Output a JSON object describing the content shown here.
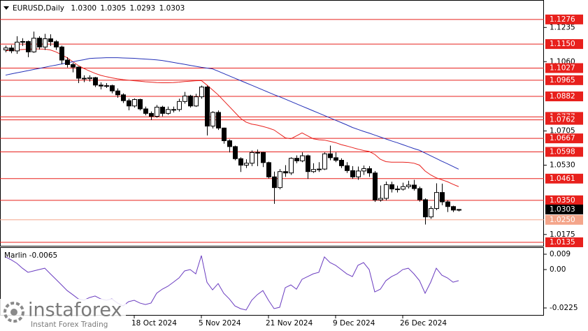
{
  "watermark": [
    "instaforex",
    "Instant Forex Trading"
  ],
  "chart_data": [
    {
      "type": "candlestick",
      "title": "EURUSD,Daily",
      "header_labels": [
        "1.0300",
        "1.0305",
        "1.0293",
        "1.0303"
      ],
      "categories": [
        null,
        null,
        null,
        null,
        null,
        null,
        null,
        null,
        null,
        null,
        null,
        null,
        null,
        null,
        null,
        null,
        null,
        null,
        null,
        null,
        null,
        null,
        null,
        "18 Oct 2024",
        null,
        null,
        null,
        null,
        null,
        null,
        null,
        null,
        null,
        null,
        null,
        "5 Nov 2024",
        null,
        null,
        null,
        null,
        null,
        null,
        null,
        null,
        null,
        null,
        null,
        "21 Nov 2024",
        null,
        null,
        null,
        null,
        null,
        null,
        null,
        null,
        null,
        null,
        null,
        "9 Dec 2024",
        null,
        null,
        null,
        null,
        null,
        null,
        null,
        null,
        null,
        null,
        null,
        "26 Dec 2024",
        null,
        null,
        null,
        null,
        null,
        null,
        null,
        null,
        null,
        null
      ],
      "ohlc": [
        [
          1.112,
          1.1142,
          1.1108,
          1.113
        ],
        [
          1.113,
          1.1145,
          1.1103,
          1.1115
        ],
        [
          1.1115,
          1.119,
          1.11,
          1.116
        ],
        [
          1.116,
          1.118,
          1.114,
          1.1163
        ],
        [
          1.1163,
          1.1168,
          1.1083,
          1.111
        ],
        [
          1.111,
          1.1214,
          1.1105,
          1.118
        ],
        [
          1.118,
          1.119,
          1.1122,
          1.1135
        ],
        [
          1.1135,
          1.1202,
          1.112,
          1.1177
        ],
        [
          1.1177,
          1.12,
          1.114,
          1.1162
        ],
        [
          1.1162,
          1.117,
          1.112,
          1.1135
        ],
        [
          1.1135,
          1.1142,
          1.1046,
          1.1068
        ],
        [
          1.1068,
          1.1083,
          1.103,
          1.1045
        ],
        [
          1.1045,
          1.1054,
          1.1005,
          1.1032
        ],
        [
          1.1032,
          1.1035,
          1.095,
          1.0975
        ],
        [
          1.0975,
          1.099,
          1.0955,
          1.0973
        ],
        [
          1.0973,
          1.099,
          1.0958,
          1.0978
        ],
        [
          1.0978,
          1.0982,
          1.093,
          1.094
        ],
        [
          1.094,
          1.0954,
          1.0918,
          1.0935
        ],
        [
          1.0935,
          1.095,
          1.0925,
          1.0937
        ],
        [
          1.0937,
          1.0942,
          1.0898,
          1.091
        ],
        [
          1.091,
          1.0923,
          1.0875,
          1.089
        ],
        [
          1.089,
          1.0898,
          1.0848,
          1.086
        ],
        [
          1.086,
          1.087,
          1.0811,
          1.0833
        ],
        [
          1.0833,
          1.0872,
          1.0825,
          1.0866
        ],
        [
          1.0866,
          1.087,
          1.081,
          1.0818
        ],
        [
          1.0818,
          1.083,
          1.0785,
          1.0795
        ],
        [
          1.0795,
          1.0805,
          1.0761,
          1.078
        ],
        [
          1.078,
          1.0838,
          1.0773,
          1.0827
        ],
        [
          1.0827,
          1.0834,
          1.078,
          1.0795
        ],
        [
          1.0795,
          1.083,
          1.0788,
          1.0815
        ],
        [
          1.0815,
          1.083,
          1.08,
          1.0815
        ],
        [
          1.0815,
          1.087,
          1.0805,
          1.0856
        ],
        [
          1.0856,
          1.0905,
          1.0845,
          1.0884
        ],
        [
          1.0884,
          1.089,
          1.0825,
          1.0833
        ],
        [
          1.0833,
          1.0895,
          1.0828,
          1.088
        ],
        [
          1.088,
          1.0937,
          1.087,
          1.093
        ],
        [
          1.093,
          1.0937,
          1.0682,
          1.073
        ],
        [
          1.073,
          1.0806,
          1.0718,
          1.08
        ],
        [
          1.08,
          1.081,
          1.071,
          1.072
        ],
        [
          1.072,
          1.0722,
          1.064,
          1.0655
        ],
        [
          1.0655,
          1.0662,
          1.0595,
          1.0625
        ],
        [
          1.0625,
          1.063,
          1.0555,
          1.0563
        ],
        [
          1.0563,
          1.057,
          1.0495,
          1.053
        ],
        [
          1.053,
          1.056,
          1.0515,
          1.054
        ],
        [
          1.054,
          1.0605,
          1.0525,
          1.0595
        ],
        [
          1.0595,
          1.061,
          1.0525,
          1.0595
        ],
        [
          1.0595,
          1.0598,
          1.052,
          1.0543
        ],
        [
          1.0543,
          1.0548,
          1.0462,
          1.047
        ],
        [
          1.047,
          1.0497,
          1.0332,
          1.0415
        ],
        [
          1.0415,
          1.051,
          1.0406,
          1.0497
        ],
        [
          1.0497,
          1.053,
          1.047,
          1.049
        ],
        [
          1.049,
          1.057,
          1.048,
          1.0565
        ],
        [
          1.0565,
          1.058,
          1.054,
          1.0552
        ],
        [
          1.0552,
          1.0595,
          1.0545,
          1.0578
        ],
        [
          1.0578,
          1.0584,
          1.046,
          1.0497
        ],
        [
          1.0497,
          1.054,
          1.049,
          1.0508
        ],
        [
          1.0508,
          1.0545,
          1.0495,
          1.051
        ],
        [
          1.051,
          1.0595,
          1.0505,
          1.0588
        ],
        [
          1.0588,
          1.063,
          1.0555,
          1.0568
        ],
        [
          1.0568,
          1.0595,
          1.0545,
          1.0555
        ],
        [
          1.0555,
          1.0565,
          1.0515,
          1.0527
        ],
        [
          1.0527,
          1.0545,
          1.049,
          1.0502
        ],
        [
          1.0502,
          1.0525,
          1.046,
          1.047
        ],
        [
          1.047,
          1.0523,
          1.0455,
          1.05
        ],
        [
          1.05,
          1.0528,
          1.048,
          1.0512
        ],
        [
          1.0512,
          1.0525,
          1.047,
          1.049
        ],
        [
          1.049,
          1.05,
          1.0342,
          1.0352
        ],
        [
          1.0352,
          1.0426,
          1.0343,
          1.036
        ],
        [
          1.036,
          1.0446,
          1.035,
          1.043
        ],
        [
          1.043,
          1.0445,
          1.039,
          1.0408
        ],
        [
          1.0408,
          1.0425,
          1.039,
          1.0407
        ],
        [
          1.0407,
          1.044,
          1.04,
          1.042
        ],
        [
          1.042,
          1.045,
          1.041,
          1.0428
        ],
        [
          1.0428,
          1.0455,
          1.04,
          1.041
        ],
        [
          1.041,
          1.042,
          1.0343,
          1.0353
        ],
        [
          1.0353,
          1.036,
          1.0226,
          1.0265
        ],
        [
          1.0265,
          1.032,
          1.0255,
          1.0308
        ],
        [
          1.0308,
          1.0437,
          1.03,
          1.039
        ],
        [
          1.039,
          1.0435,
          1.0325,
          1.0342
        ],
        [
          1.0342,
          1.035,
          1.029,
          1.0318
        ],
        [
          1.0318,
          1.0322,
          1.029,
          1.03
        ],
        [
          1.03,
          1.0305,
          1.0293,
          1.0303
        ]
      ],
      "series": [
        {
          "color": "#e8201c",
          "values": [
            1.1116,
            1.1118,
            1.112,
            1.1122,
            1.1123,
            1.1125,
            1.1125,
            1.1124,
            1.112,
            1.111,
            1.1095,
            1.108,
            1.106,
            1.104,
            1.1025,
            1.1012,
            1.1,
            1.099,
            1.0983,
            1.0977,
            1.0972,
            1.0968,
            1.0965,
            1.0962,
            1.096,
            1.0957,
            1.0955,
            1.0953,
            1.0952,
            1.0952,
            1.0953,
            1.0955,
            1.0958,
            1.096,
            1.0962,
            1.0963,
            1.094,
            1.0915,
            1.089,
            1.086,
            1.083,
            1.08,
            1.077,
            1.075,
            1.074,
            1.0735,
            1.0728,
            1.072,
            1.071,
            1.069,
            1.067,
            1.0665,
            1.068,
            1.0695,
            1.068,
            1.0665,
            1.066,
            1.0658,
            1.0652,
            1.0645,
            1.0635,
            1.0628,
            1.062,
            1.0612,
            1.0605,
            1.06,
            1.0585,
            1.056,
            1.0548,
            1.0545,
            1.0545,
            1.0545,
            1.0544,
            1.054,
            1.053,
            1.05,
            1.048,
            1.0465,
            1.0455,
            1.0445,
            1.0432,
            1.042
          ]
        },
        {
          "color": "#2430b8",
          "values": [
            1.0991,
            1.0997,
            1.1003,
            1.1008,
            1.1014,
            1.102,
            1.1025,
            1.1031,
            1.1037,
            1.1042,
            1.1048,
            1.1054,
            1.1059,
            1.1065,
            1.107,
            1.1076,
            1.1078,
            1.1079,
            1.108,
            1.108,
            1.108,
            1.1079,
            1.1078,
            1.1077,
            1.1075,
            1.1073,
            1.1071,
            1.1069,
            1.1066,
            1.1061,
            1.1056,
            1.1051,
            1.1046,
            1.1041,
            1.1036,
            1.1031,
            1.1027,
            1.1023,
            1.1011,
            1.0999,
            1.0987,
            1.0975,
            1.0963,
            1.0951,
            1.0939,
            1.0927,
            1.0915,
            1.0903,
            1.0891,
            1.088,
            1.0868,
            1.0856,
            1.0844,
            1.0832,
            1.082,
            1.0808,
            1.0796,
            1.0784,
            1.0772,
            1.076,
            1.0748,
            1.0736,
            1.0723,
            1.0713,
            1.0703,
            1.0694,
            1.0684,
            1.0674,
            1.0664,
            1.0654,
            1.0645,
            1.0635,
            1.0625,
            1.0615,
            1.0606,
            1.0592,
            1.0578,
            1.0564,
            1.055,
            1.0537,
            1.0523,
            1.0509
          ]
        }
      ],
      "ylim": [
        1.0117,
        1.1372
      ],
      "yticks": [
        1.1235,
        {
          "value": 1.106,
          "label": "1.1060"
        },
        1.0705,
        {
          "value": 1.053,
          "label": "1.0530"
        },
        1.0175
      ],
      "levels": [
        {
          "value": 1.1276,
          "color": "#e8201c"
        },
        {
          "value": 1.115,
          "label": "1.1150",
          "color": "#e8201c"
        },
        {
          "value": 1.1027,
          "color": "#e8201c"
        },
        {
          "value": 1.0965,
          "color": "#e8201c"
        },
        {
          "value": 1.0882,
          "color": "#e8201c"
        },
        {
          "value": 1.0777,
          "color": "#e8201c"
        },
        {
          "value": 1.0762,
          "color": "#e8201c"
        },
        {
          "value": 1.0667,
          "color": "#e8201c"
        },
        {
          "value": 1.0598,
          "color": "#e8201c"
        },
        {
          "value": 1.0461,
          "color": "#e8201c"
        },
        {
          "value": 1.035,
          "label": "1.0350",
          "color": "#e8201c"
        },
        {
          "value": 1.025,
          "label": "1.0250",
          "color": "#f4a58a"
        },
        {
          "value": 1.0135,
          "color": "#e8201c"
        }
      ]
    },
    {
      "type": "line",
      "title": "Marlin",
      "series": [
        {
          "color": "#6a3cc0",
          "values": [
            0.0074,
            0.0057,
            0.0037,
            0.0008,
            -0.0016,
            -0.0008,
            0.0,
            0.0008,
            -0.0025,
            -0.0057,
            -0.009,
            -0.0123,
            -0.0147,
            -0.0172,
            -0.018,
            -0.0164,
            -0.0155,
            -0.0172,
            -0.018,
            -0.0172,
            -0.0196,
            -0.0213,
            -0.0188,
            -0.018,
            -0.0196,
            -0.0205,
            -0.0196,
            -0.0139,
            -0.0115,
            -0.0098,
            -0.0074,
            -0.0049,
            -0.0008,
            0.0,
            -0.0025,
            0.0082,
            -0.0074,
            -0.0119,
            -0.0082,
            -0.0139,
            -0.0172,
            -0.0213,
            -0.0229,
            -0.0237,
            -0.018,
            -0.0147,
            -0.0123,
            -0.018,
            -0.0229,
            -0.0221,
            -0.0106,
            -0.009,
            -0.0115,
            -0.0057,
            -0.0041,
            -0.0025,
            -0.0016,
            0.0074,
            0.0041,
            0.0025,
            0.0,
            -0.0025,
            -0.0041,
            0.0025,
            0.0041,
            0.0,
            -0.0131,
            -0.0115,
            -0.0065,
            -0.0041,
            -0.0025,
            0.0,
            0.0008,
            -0.0025,
            -0.0065,
            -0.0139,
            -0.0074,
            0.0008,
            -0.0033,
            -0.0049,
            -0.0074,
            -0.0065
          ]
        }
      ],
      "ylim": [
        -0.027,
        0.0127
      ],
      "yticks": [
        0.009,
        {
          "value": 0,
          "label": "0.00"
        },
        -0.0225
      ]
    }
  ]
}
